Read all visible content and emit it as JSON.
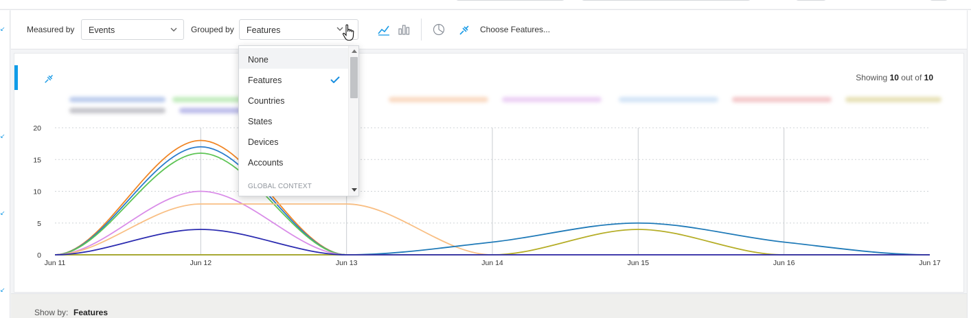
{
  "toolbar": {
    "measured_by_label": "Measured by",
    "measured_by_value": "Events",
    "grouped_by_label": "Grouped by",
    "grouped_by_value": "Features",
    "chart_type_icons": [
      "line-chart-icon",
      "bar-chart-icon",
      "pie-chart-icon"
    ],
    "choose_features_label": "Choose Features..."
  },
  "dropdown": {
    "items": [
      {
        "label": "None",
        "selected": false,
        "highlighted": true
      },
      {
        "label": "Features",
        "selected": true,
        "highlighted": false
      },
      {
        "label": "Countries",
        "selected": false,
        "highlighted": false
      },
      {
        "label": "States",
        "selected": false,
        "highlighted": false
      },
      {
        "label": "Devices",
        "selected": false,
        "highlighted": false
      },
      {
        "label": "Accounts",
        "selected": false,
        "highlighted": false
      }
    ],
    "group_header": "GLOBAL CONTEXT"
  },
  "card": {
    "showing_prefix": "Showing",
    "showing_count": "10",
    "showing_mid": "out of",
    "showing_total": "10"
  },
  "show_by": {
    "label": "Show by:",
    "value": "Features"
  },
  "chart_data": {
    "type": "line",
    "categories": [
      "Jun 11",
      "Jun 12",
      "Jun 13",
      "Jun 14",
      "Jun 15",
      "Jun 16",
      "Jun 17"
    ],
    "yticks": [
      0,
      5,
      10,
      15,
      20
    ],
    "ylim": [
      0,
      20
    ],
    "grid": true,
    "series": [
      {
        "color": "#f08524",
        "values": [
          0,
          18,
          0,
          0,
          0,
          0,
          0
        ]
      },
      {
        "color": "#2a7ccc",
        "values": [
          0,
          17,
          0,
          0,
          0,
          0,
          0
        ]
      },
      {
        "color": "#5dc454",
        "values": [
          0,
          16,
          0,
          0,
          0,
          0,
          0
        ]
      },
      {
        "color": "#d98ce8",
        "values": [
          0,
          10,
          0,
          0,
          0,
          0,
          0
        ]
      },
      {
        "color": "#f9bf84",
        "values": [
          0,
          8,
          8,
          0,
          0,
          0,
          0
        ]
      },
      {
        "color": "#1f7ab8",
        "values": [
          0,
          0,
          0,
          2,
          5,
          2,
          0
        ]
      },
      {
        "color": "#b5ad26",
        "values": [
          0,
          0,
          0,
          0,
          4,
          0,
          0
        ]
      },
      {
        "color": "#2b2bb0",
        "values": [
          0,
          4,
          0,
          0,
          0,
          0,
          0
        ]
      }
    ],
    "legend_colors": [
      "#6b8fd6",
      "#7bd46e",
      "#f5ad7a",
      "#d49ae8",
      "#9fc6ee",
      "#e6868a",
      "#c9bd5e",
      "#7d7d8a",
      "#6a6ad0"
    ]
  }
}
